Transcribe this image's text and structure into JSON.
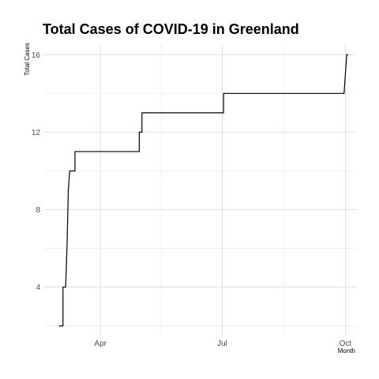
{
  "chart_data": {
    "type": "line",
    "title": "Total Cases of COVID-19 in Greenland",
    "xlabel": "Month",
    "ylabel": "Total Cases",
    "x_ticks": [
      {
        "label": "Apr",
        "day": 31
      },
      {
        "label": "Jul",
        "day": 122
      },
      {
        "label": "Oct",
        "day": 214
      }
    ],
    "y_ticks": [
      4,
      8,
      12,
      16
    ],
    "xlim_days": [
      -11,
      222
    ],
    "ylim": [
      1.5,
      16.5
    ],
    "grid": true,
    "series": [
      {
        "name": "Total Cases",
        "color": "#000000",
        "points": [
          {
            "day": 0,
            "value": 2
          },
          {
            "day": 3,
            "value": 2
          },
          {
            "day": 3,
            "value": 4
          },
          {
            "day": 5,
            "value": 4
          },
          {
            "day": 6,
            "value": 6
          },
          {
            "day": 7,
            "value": 9
          },
          {
            "day": 8,
            "value": 10
          },
          {
            "day": 12,
            "value": 10
          },
          {
            "day": 12,
            "value": 11
          },
          {
            "day": 60,
            "value": 11
          },
          {
            "day": 60,
            "value": 12
          },
          {
            "day": 62,
            "value": 12
          },
          {
            "day": 62,
            "value": 13
          },
          {
            "day": 123,
            "value": 13
          },
          {
            "day": 123,
            "value": 14
          },
          {
            "day": 213,
            "value": 14
          },
          {
            "day": 215,
            "value": 16
          },
          {
            "day": 216,
            "value": 16
          }
        ]
      }
    ]
  }
}
